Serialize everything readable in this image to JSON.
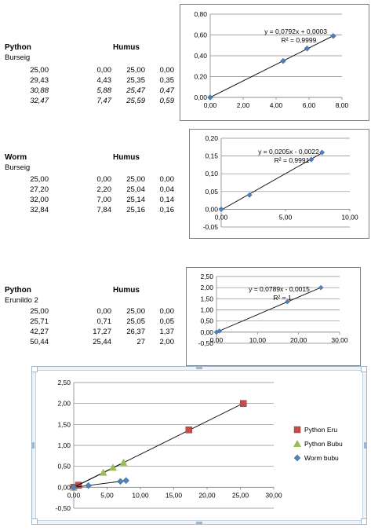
{
  "colors": {
    "series_blue": "#4f81bd",
    "series_red": "#c0504d",
    "series_green": "#9bbb59",
    "line": "#000000",
    "selection_frame": "#9fb6cf"
  },
  "tables": [
    {
      "title": "Python",
      "humus_label": "Humus",
      "subtitle": "Burseig",
      "rows": [
        [
          "25,00",
          "0,00",
          "25,00",
          "0,00"
        ],
        [
          "29,43",
          "4,43",
          "25,35",
          "0,35"
        ],
        [
          "30,88",
          "5,88",
          "25,47",
          "0,47"
        ],
        [
          "32,47",
          "7,47",
          "25,59",
          "0,59"
        ]
      ],
      "italic_rows": [
        2,
        3
      ]
    },
    {
      "title": "Worm",
      "humus_label": "Humus",
      "subtitle": "Burseig",
      "rows": [
        [
          "25,00",
          "0,00",
          "25,00",
          "0,00"
        ],
        [
          "27,20",
          "2,20",
          "25,04",
          "0,04"
        ],
        [
          "32,00",
          "7,00",
          "25,14",
          "0,14"
        ],
        [
          "32,84",
          "7,84",
          "25,16",
          "0,16"
        ]
      ],
      "italic_rows": []
    },
    {
      "title": "Python",
      "humus_label": "Humus",
      "subtitle": "Erunildo 2",
      "rows": [
        [
          "25,00",
          "0,00",
          "25,00",
          "0,00"
        ],
        [
          "25,71",
          "0,71",
          "25,05",
          "0,05"
        ],
        [
          "42,27",
          "17,27",
          "26,37",
          "1,37"
        ],
        [
          "50,44",
          "25,44",
          "27",
          "2,00"
        ]
      ],
      "italic_rows": []
    }
  ],
  "chart_data": [
    {
      "type": "scatter",
      "x_ticks": [
        "0,00",
        "2,00",
        "4,00",
        "6,00",
        "8,00"
      ],
      "y_ticks": [
        "0,00",
        "0,20",
        "0,40",
        "0,60",
        "0,80"
      ],
      "xlim": [
        0,
        8
      ],
      "ylim": [
        0,
        0.8
      ],
      "points": [
        [
          0,
          0
        ],
        [
          4.43,
          0.35
        ],
        [
          5.88,
          0.47
        ],
        [
          7.47,
          0.59
        ]
      ],
      "trendline": {
        "slope": 0.0792,
        "intercept": 0.0003
      },
      "equation": "y = 0,0792x + 0,0003",
      "r2": "R² = 0,9999"
    },
    {
      "type": "scatter",
      "x_ticks": [
        "0,00",
        "5,00",
        "10,00"
      ],
      "y_ticks": [
        "-0,05",
        "0,00",
        "0,05",
        "0,10",
        "0,15",
        "0,20"
      ],
      "xlim": [
        0,
        10
      ],
      "ylim": [
        -0.05,
        0.2
      ],
      "points": [
        [
          0,
          0
        ],
        [
          2.2,
          0.04
        ],
        [
          7,
          0.14
        ],
        [
          7.84,
          0.16
        ]
      ],
      "trendline": {
        "slope": 0.0205,
        "intercept": -0.0022
      },
      "equation": "y = 0,0205x - 0,0022",
      "r2": "R² = 0,9991"
    },
    {
      "type": "scatter",
      "x_ticks": [
        "0,00",
        "10,00",
        "20,00",
        "30,00"
      ],
      "y_ticks": [
        "-0,50",
        "0,00",
        "0,50",
        "1,00",
        "1,50",
        "2,00",
        "2,50"
      ],
      "xlim": [
        0,
        30
      ],
      "ylim": [
        -0.5,
        2.5
      ],
      "points": [
        [
          0,
          0
        ],
        [
          0.71,
          0.05
        ],
        [
          17.27,
          1.37
        ],
        [
          25.44,
          2.0
        ]
      ],
      "trendline": {
        "slope": 0.0789,
        "intercept": -0.0015
      },
      "equation": "y = 0,0789x - 0,0015",
      "r2": "R² = 1"
    },
    {
      "type": "scatter",
      "x_ticks": [
        "0,00",
        "5,00",
        "10,00",
        "15,00",
        "20,00",
        "25,00",
        "30,00"
      ],
      "y_ticks": [
        "-0,50",
        "0,00",
        "0,50",
        "1,00",
        "1,50",
        "2,00",
        "2,50"
      ],
      "xlim": [
        0,
        30
      ],
      "ylim": [
        -0.5,
        2.5
      ],
      "legend_position": "right",
      "series": [
        {
          "name": "Python Eru",
          "marker": "square",
          "color": "#c0504d",
          "points": [
            [
              0,
              0
            ],
            [
              0.71,
              0.05
            ],
            [
              17.27,
              1.37
            ],
            [
              25.44,
              2.0
            ]
          ],
          "trendline": {
            "slope": 0.0789,
            "intercept": -0.0015
          }
        },
        {
          "name": "Python Bubu",
          "marker": "triangle",
          "color": "#9bbb59",
          "points": [
            [
              0,
              0
            ],
            [
              4.43,
              0.35
            ],
            [
              5.88,
              0.47
            ],
            [
              7.47,
              0.59
            ]
          ],
          "trendline": {
            "slope": 0.0792,
            "intercept": 0.0003
          }
        },
        {
          "name": "Worm bubu",
          "marker": "diamond",
          "color": "#4f81bd",
          "points": [
            [
              0,
              0
            ],
            [
              2.2,
              0.04
            ],
            [
              7,
              0.14
            ],
            [
              7.84,
              0.16
            ]
          ],
          "trendline": {
            "slope": 0.0205,
            "intercept": -0.0022
          }
        }
      ]
    }
  ]
}
